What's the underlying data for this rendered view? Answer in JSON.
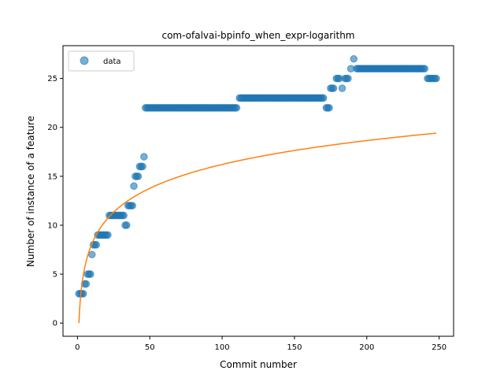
{
  "chart_data": {
    "type": "scatter",
    "title": "com-ofalvai-bpinfo_when_expr-logarithm",
    "xlabel": "Commit number",
    "ylabel": "Number of instance of a feature",
    "xlim": [
      -10,
      260
    ],
    "ylim": [
      -1.35,
      28.35
    ],
    "xticks": [
      0,
      50,
      100,
      150,
      200,
      250
    ],
    "yticks": [
      0,
      5,
      10,
      15,
      20,
      25
    ],
    "grid": false,
    "legend_position": "top-left",
    "colors": {
      "data": "#1f77b4",
      "fit": "#ff7f0e"
    },
    "series": [
      {
        "name": "data",
        "kind": "scatter",
        "points": [
          [
            1,
            3
          ],
          [
            2,
            3
          ],
          [
            3,
            3
          ],
          [
            4,
            3
          ],
          [
            5,
            4
          ],
          [
            6,
            4
          ],
          [
            7,
            5
          ],
          [
            8,
            5
          ],
          [
            9,
            5
          ],
          [
            10,
            7
          ],
          [
            11,
            8
          ],
          [
            12,
            8
          ],
          [
            13,
            8
          ],
          [
            14,
            9
          ],
          [
            15,
            9
          ],
          [
            16,
            9
          ],
          [
            17,
            9
          ],
          [
            18,
            9
          ],
          [
            19,
            9
          ],
          [
            20,
            9
          ],
          [
            21,
            9
          ],
          [
            22,
            11
          ],
          [
            23,
            11
          ],
          [
            24,
            11
          ],
          [
            25,
            11
          ],
          [
            26,
            11
          ],
          [
            27,
            11
          ],
          [
            28,
            11
          ],
          [
            29,
            11
          ],
          [
            30,
            11
          ],
          [
            31,
            11
          ],
          [
            32,
            11
          ],
          [
            33,
            10
          ],
          [
            34,
            10
          ],
          [
            35,
            12
          ],
          [
            36,
            12
          ],
          [
            37,
            12
          ],
          [
            38,
            12
          ],
          [
            39,
            14
          ],
          [
            40,
            15
          ],
          [
            41,
            15
          ],
          [
            42,
            15
          ],
          [
            43,
            16
          ],
          [
            44,
            16
          ],
          [
            45,
            16
          ],
          [
            46,
            17
          ],
          [
            47,
            22
          ],
          [
            50,
            22
          ],
          [
            55,
            22
          ],
          [
            60,
            22
          ],
          [
            65,
            22
          ],
          [
            70,
            22
          ],
          [
            75,
            22
          ],
          [
            80,
            22
          ],
          [
            85,
            22
          ],
          [
            90,
            22
          ],
          [
            95,
            22
          ],
          [
            100,
            22
          ],
          [
            105,
            22
          ],
          [
            110,
            22
          ],
          [
            112,
            23
          ],
          [
            115,
            23
          ],
          [
            120,
            23
          ],
          [
            125,
            23
          ],
          [
            130,
            23
          ],
          [
            135,
            23
          ],
          [
            140,
            23
          ],
          [
            145,
            23
          ],
          [
            150,
            23
          ],
          [
            155,
            23
          ],
          [
            160,
            23
          ],
          [
            165,
            23
          ],
          [
            170,
            23
          ],
          [
            172,
            22
          ],
          [
            174,
            22
          ],
          [
            175,
            24
          ],
          [
            177,
            24
          ],
          [
            179,
            25
          ],
          [
            181,
            25
          ],
          [
            183,
            24
          ],
          [
            185,
            25
          ],
          [
            187,
            25
          ],
          [
            189,
            26
          ],
          [
            191,
            27
          ],
          [
            193,
            26
          ],
          [
            195,
            26
          ],
          [
            200,
            26
          ],
          [
            205,
            26
          ],
          [
            210,
            26
          ],
          [
            215,
            26
          ],
          [
            220,
            26
          ],
          [
            225,
            26
          ],
          [
            230,
            26
          ],
          [
            235,
            26
          ],
          [
            240,
            26
          ],
          [
            242,
            25
          ],
          [
            244,
            25
          ],
          [
            246,
            25
          ],
          [
            248,
            25
          ]
        ]
      },
      {
        "kind": "line",
        "formula": "y = 3.52 * ln(x)",
        "x_range": [
          1,
          248
        ]
      }
    ]
  }
}
